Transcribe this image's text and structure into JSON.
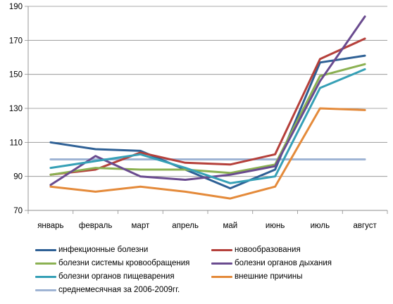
{
  "chart_data": {
    "type": "line",
    "categories": [
      "январь",
      "февраль",
      "март",
      "апрель",
      "май",
      "июнь",
      "июль",
      "август"
    ],
    "ylim": [
      70,
      190
    ],
    "yticks": [
      70,
      90,
      110,
      130,
      150,
      170,
      190
    ],
    "grid": "horizontal",
    "legend_position": "bottom",
    "series": [
      {
        "name": "инфекционные болезни",
        "color": "#2E6095",
        "values": [
          110,
          106,
          105,
          94,
          83,
          94,
          157,
          161
        ]
      },
      {
        "name": "новообразования",
        "color": "#B5403B",
        "values": [
          91,
          94,
          104,
          98,
          97,
          103,
          159,
          171
        ]
      },
      {
        "name": "болезни системы кровообращения",
        "color": "#8BB152",
        "values": [
          91,
          95,
          94,
          94,
          92,
          97,
          149,
          156
        ]
      },
      {
        "name": "болезни органов дыхания",
        "color": "#6A4B8F",
        "values": [
          85,
          102,
          90,
          88,
          91,
          96,
          146,
          184
        ]
      },
      {
        "name": "болезни органов пищеварения",
        "color": "#36A0B6",
        "values": [
          95,
          99,
          103,
          95,
          86,
          90,
          142,
          153
        ]
      },
      {
        "name": "внешние причины",
        "color": "#E48A3A",
        "values": [
          84,
          81,
          84,
          81,
          77,
          84,
          130,
          129
        ]
      },
      {
        "name": "среднемесячная за 2006-2009гг.",
        "color": "#9FB4D4",
        "values": [
          100,
          100,
          100,
          100,
          100,
          100,
          100,
          100
        ]
      }
    ]
  }
}
